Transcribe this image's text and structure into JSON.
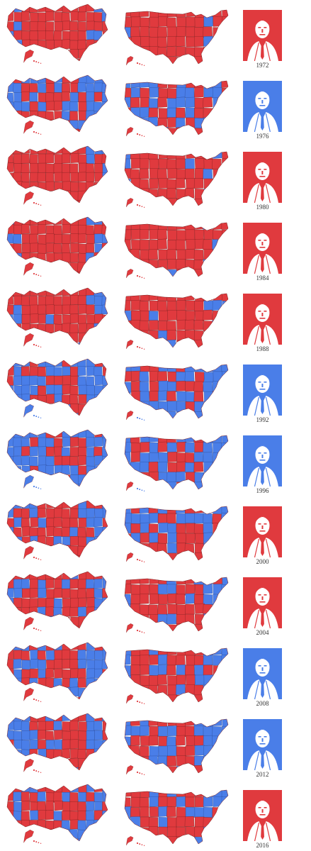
{
  "colors": {
    "red": "#e03a3e",
    "blue": "#4a7ee8",
    "border": "#7a2020",
    "blue_border": "#2a4a9a",
    "background": "#ffffff"
  },
  "elections": [
    {
      "year": "1972",
      "winner_color": "red",
      "blue_share": 0.04
    },
    {
      "year": "1976",
      "winner_color": "blue",
      "blue_share": 0.45
    },
    {
      "year": "1980",
      "winner_color": "red",
      "blue_share": 0.08
    },
    {
      "year": "1984",
      "winner_color": "red",
      "blue_share": 0.03
    },
    {
      "year": "1988",
      "winner_color": "red",
      "blue_share": 0.18
    },
    {
      "year": "1992",
      "winner_color": "blue",
      "blue_share": 0.62
    },
    {
      "year": "1996",
      "winner_color": "blue",
      "blue_share": 0.62
    },
    {
      "year": "2000",
      "winner_color": "red",
      "blue_share": 0.4
    },
    {
      "year": "2004",
      "winner_color": "red",
      "blue_share": 0.35
    },
    {
      "year": "2008",
      "winner_color": "blue",
      "blue_share": 0.5
    },
    {
      "year": "2012",
      "winner_color": "blue",
      "blue_share": 0.47
    },
    {
      "year": "2016",
      "winner_color": "red",
      "blue_share": 0.38
    }
  ]
}
